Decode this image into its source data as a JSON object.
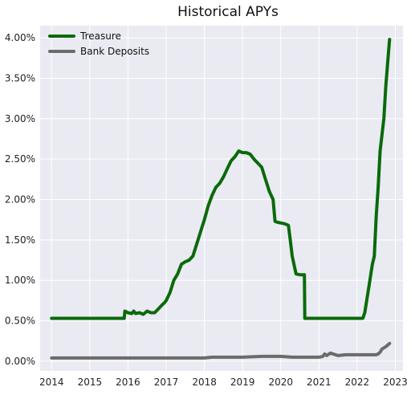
{
  "chart_data": {
    "type": "line",
    "title": "Historical APYs",
    "xlabel": "",
    "ylabel": "",
    "xlim": [
      2013.7,
      2023.2
    ],
    "ylim": [
      -0.0012,
      0.0415
    ],
    "x_ticks": [
      2014,
      2015,
      2016,
      2017,
      2018,
      2019,
      2020,
      2021,
      2022,
      2023
    ],
    "x_tick_labels": [
      "2014",
      "2015",
      "2016",
      "2017",
      "2018",
      "2019",
      "2020",
      "2021",
      "2022",
      "2023"
    ],
    "y_ticks": [
      0.0,
      0.005,
      0.01,
      0.015,
      0.02,
      0.025,
      0.03,
      0.035,
      0.04
    ],
    "y_tick_labels": [
      "0.00%",
      "0.50%",
      "1.00%",
      "1.50%",
      "2.00%",
      "2.50%",
      "3.00%",
      "3.50%",
      "4.00%"
    ],
    "grid": true,
    "legend_position": "top-left",
    "background": "#eaeaf2",
    "series": [
      {
        "name": "Treasure",
        "color": "#0a6a0a",
        "x": [
          2014.0,
          2015.0,
          2015.9,
          2015.92,
          2016.0,
          2016.1,
          2016.15,
          2016.2,
          2016.3,
          2016.4,
          2016.5,
          2016.6,
          2016.7,
          2016.8,
          2016.9,
          2016.95,
          2017.0,
          2017.1,
          2017.2,
          2017.3,
          2017.4,
          2017.5,
          2017.6,
          2017.7,
          2017.8,
          2017.9,
          2018.0,
          2018.1,
          2018.2,
          2018.3,
          2018.4,
          2018.5,
          2018.6,
          2018.7,
          2018.8,
          2018.9,
          2019.0,
          2019.1,
          2019.2,
          2019.3,
          2019.4,
          2019.5,
          2019.6,
          2019.7,
          2019.8,
          2019.85,
          2019.9,
          2020.0,
          2020.1,
          2020.2,
          2020.25,
          2020.3,
          2020.4,
          2020.5,
          2020.6,
          2020.62,
          2020.63,
          2021.0,
          2021.5,
          2022.0,
          2022.1,
          2022.15,
          2022.2,
          2022.3,
          2022.4,
          2022.45,
          2022.5,
          2022.55,
          2022.6,
          2022.7,
          2022.75,
          2022.8,
          2022.85
        ],
        "values": [
          0.0053,
          0.0053,
          0.0053,
          0.0062,
          0.006,
          0.0059,
          0.0062,
          0.0059,
          0.006,
          0.0058,
          0.0062,
          0.006,
          0.006,
          0.0065,
          0.007,
          0.0072,
          0.0075,
          0.0085,
          0.01,
          0.0108,
          0.012,
          0.0123,
          0.0125,
          0.013,
          0.0145,
          0.016,
          0.0175,
          0.0192,
          0.0205,
          0.0215,
          0.022,
          0.0228,
          0.0238,
          0.0248,
          0.0253,
          0.026,
          0.0258,
          0.0258,
          0.0256,
          0.025,
          0.0245,
          0.024,
          0.0225,
          0.021,
          0.02,
          0.0173,
          0.0172,
          0.0171,
          0.017,
          0.0168,
          0.015,
          0.013,
          0.0108,
          0.0107,
          0.0107,
          0.0107,
          0.0053,
          0.0053,
          0.0053,
          0.0053,
          0.0053,
          0.0053,
          0.006,
          0.009,
          0.012,
          0.013,
          0.018,
          0.0215,
          0.026,
          0.03,
          0.034,
          0.037,
          0.0398
        ]
      },
      {
        "name": "Bank Deposits",
        "color": "#6b6b6b",
        "x": [
          2014.0,
          2015.0,
          2016.0,
          2017.0,
          2018.0,
          2018.2,
          2019.0,
          2019.5,
          2020.0,
          2020.3,
          2020.7,
          2021.0,
          2021.1,
          2021.15,
          2021.2,
          2021.3,
          2021.5,
          2021.7,
          2022.0,
          2022.5,
          2022.55,
          2022.6,
          2022.65,
          2022.75,
          2022.85
        ],
        "values": [
          0.0004,
          0.0004,
          0.0004,
          0.0004,
          0.0004,
          0.0005,
          0.0005,
          0.0006,
          0.0006,
          0.0005,
          0.0005,
          0.0005,
          0.0006,
          0.0009,
          0.0007,
          0.001,
          0.0007,
          0.0008,
          0.0008,
          0.0008,
          0.0009,
          0.0011,
          0.0015,
          0.0018,
          0.0022
        ]
      }
    ]
  }
}
